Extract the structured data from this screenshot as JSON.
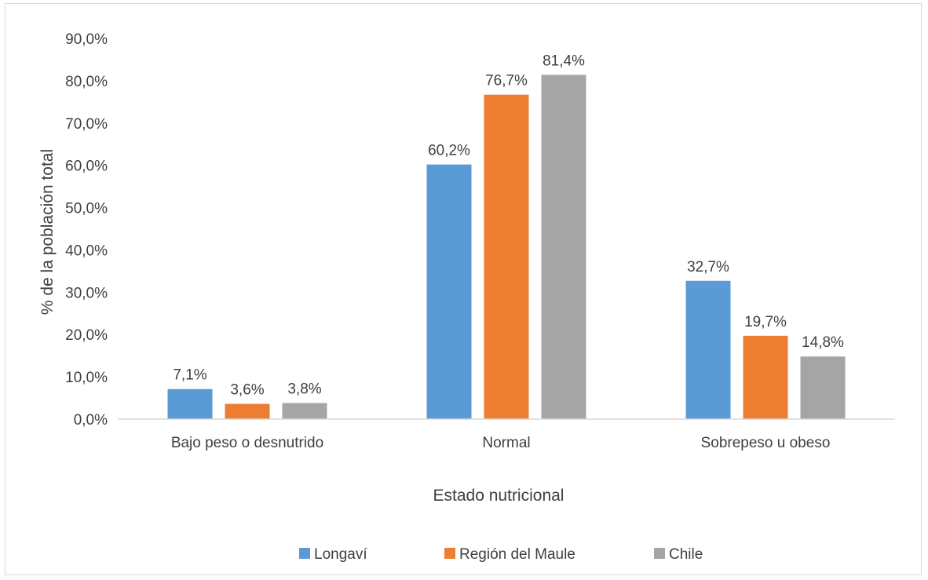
{
  "chart_data": {
    "type": "bar",
    "title": "",
    "xlabel": "Estado nutricional",
    "ylabel": "% de la población total",
    "ylim": [
      0,
      90
    ],
    "yticks": [
      "0,0%",
      "10,0%",
      "20,0%",
      "30,0%",
      "40,0%",
      "50,0%",
      "60,0%",
      "70,0%",
      "80,0%",
      "90,0%"
    ],
    "categories": [
      "Bajo peso o desnutrido",
      "Normal",
      "Sobrepeso u obeso"
    ],
    "series": [
      {
        "name": "Longaví",
        "color": "#5b9bd5",
        "values": [
          7.1,
          60.2,
          32.7
        ],
        "labels": [
          "7,1%",
          "60,2%",
          "32,7%"
        ]
      },
      {
        "name": "Región del Maule",
        "color": "#ed7d31",
        "values": [
          3.6,
          76.7,
          19.7
        ],
        "labels": [
          "3,6%",
          "76,7%",
          "19,7%"
        ]
      },
      {
        "name": "Chile",
        "color": "#a5a5a5",
        "values": [
          3.8,
          81.4,
          14.8
        ],
        "labels": [
          "3,8%",
          "81,4%",
          "14,8%"
        ]
      }
    ],
    "legend_position": "bottom",
    "grid": false
  }
}
